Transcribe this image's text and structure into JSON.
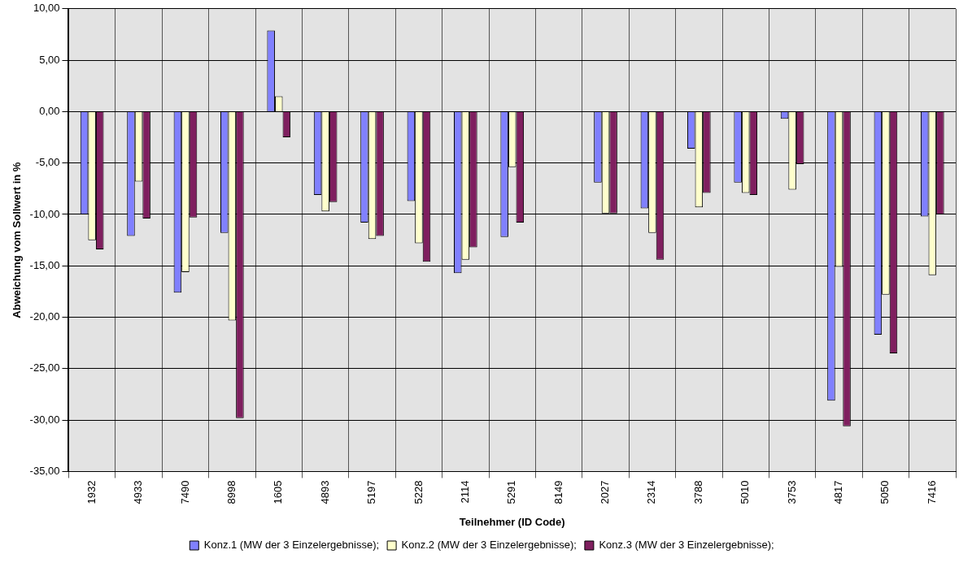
{
  "chart_data": {
    "type": "bar",
    "xlabel": "Teilnehmer (ID Code)",
    "ylabel": "Abweichung vom Sollwert in %",
    "categories": [
      "1932",
      "4933",
      "7490",
      "8998",
      "1605",
      "4893",
      "5197",
      "5228",
      "2114",
      "5291",
      "8149",
      "2027",
      "2314",
      "3788",
      "5010",
      "3753",
      "4817",
      "5050",
      "7416"
    ],
    "series": [
      {
        "name": "Konz.1 (MW der 3 Einzelergebnisse);",
        "color": "#8080ff",
        "values": [
          -10.0,
          -12.1,
          -17.6,
          -11.8,
          7.9,
          -8.1,
          -10.8,
          -8.7,
          -15.7,
          -12.2,
          null,
          -6.9,
          -9.4,
          -3.6,
          -6.9,
          -0.7,
          -28.1,
          -21.7,
          -10.2
        ]
      },
      {
        "name": "Konz.2 (MW der 3 Einzelergebnisse);",
        "color": "#ffffcc",
        "values": [
          -12.5,
          -6.8,
          -15.6,
          -20.3,
          1.5,
          -9.7,
          -12.4,
          -12.8,
          -14.4,
          -5.4,
          null,
          -9.9,
          -11.8,
          -9.3,
          -7.9,
          -7.6,
          -15.1,
          -17.8,
          -15.9
        ]
      },
      {
        "name": "Konz.3 (MW der 3 Einzelergebnisse);",
        "color": "#7f1f5f",
        "values": [
          -13.4,
          -10.4,
          -10.3,
          -29.8,
          -2.5,
          -8.8,
          -12.1,
          -14.6,
          -13.2,
          -10.8,
          null,
          -9.9,
          -14.4,
          -7.9,
          -8.1,
          -5.1,
          -30.6,
          -23.5,
          -10.0
        ]
      }
    ],
    "ylim": [
      -35,
      10
    ],
    "yticks": [
      {
        "value": 10,
        "label": "10,00"
      },
      {
        "value": 5,
        "label": "5,00"
      },
      {
        "value": 0,
        "label": "0,00"
      },
      {
        "value": -5,
        "label": "-5,00"
      },
      {
        "value": -10,
        "label": "-10,00"
      },
      {
        "value": -15,
        "label": "-15,00"
      },
      {
        "value": -20,
        "label": "-20,00"
      },
      {
        "value": -25,
        "label": "-25,00"
      },
      {
        "value": -30,
        "label": "-30,00"
      },
      {
        "value": -35,
        "label": "-35,00"
      }
    ],
    "grid": true,
    "legend": "bottom"
  }
}
